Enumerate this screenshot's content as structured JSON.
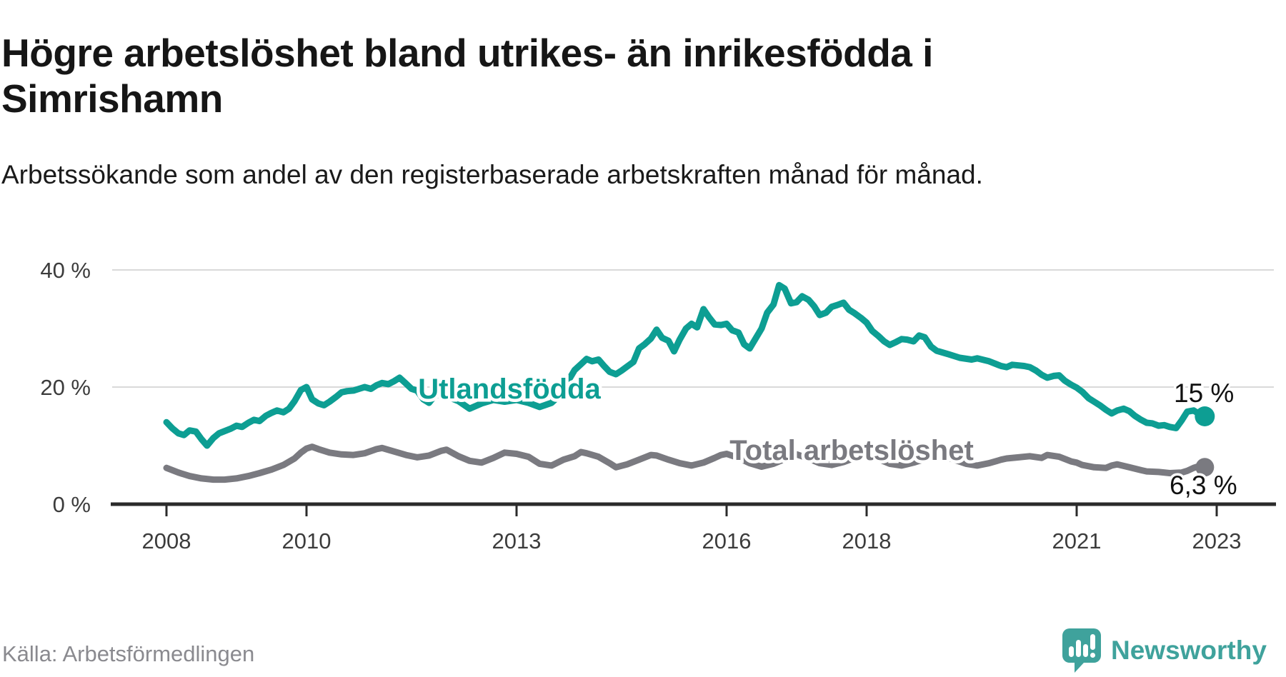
{
  "title": "Högre arbetslöshet bland utrikes- än inrikesfödda i Simrishamn",
  "subtitle": "Arbetssökande som andel av den registerbaserade arbetskraften månad för månad.",
  "source": "Källa: Arbetsförmedlingen",
  "branding": {
    "name": "Newsworthy"
  },
  "chart_data": {
    "type": "line",
    "title": "Högre arbetslöshet bland utrikes- än inrikesfödda i Simrishamn",
    "xlabel": "",
    "ylabel": "",
    "grid": "horizontal",
    "x_axis": {
      "min": 2008,
      "max": 2023.8,
      "ticks": [
        {
          "value": 2008,
          "label": "2008"
        },
        {
          "value": 2010,
          "label": "2010"
        },
        {
          "value": 2013,
          "label": "2013"
        },
        {
          "value": 2016,
          "label": "2016"
        },
        {
          "value": 2018,
          "label": "2018"
        },
        {
          "value": 2021,
          "label": "2021"
        },
        {
          "value": 2023,
          "label": "2023"
        }
      ]
    },
    "y_axis": {
      "min": 0,
      "max": 40,
      "unit": "%",
      "ticks": [
        {
          "value": 0,
          "label": "0 %"
        },
        {
          "value": 20,
          "label": "20 %"
        },
        {
          "value": 40,
          "label": "40 %"
        }
      ]
    },
    "series": [
      {
        "name": "Utlandsfödda",
        "color": "#0d9e93",
        "end_label": "15 %",
        "end_value": 15,
        "points": [
          [
            2008.0,
            14.0
          ],
          [
            2008.08,
            13.0
          ],
          [
            2008.17,
            12.1
          ],
          [
            2008.25,
            11.8
          ],
          [
            2008.33,
            12.6
          ],
          [
            2008.42,
            12.4
          ],
          [
            2008.5,
            11.1
          ],
          [
            2008.58,
            10.0
          ],
          [
            2008.67,
            11.3
          ],
          [
            2008.75,
            12.1
          ],
          [
            2008.92,
            12.9
          ],
          [
            2009.0,
            13.4
          ],
          [
            2009.08,
            13.2
          ],
          [
            2009.17,
            13.9
          ],
          [
            2009.25,
            14.4
          ],
          [
            2009.33,
            14.2
          ],
          [
            2009.42,
            15.1
          ],
          [
            2009.5,
            15.6
          ],
          [
            2009.58,
            16.0
          ],
          [
            2009.67,
            15.7
          ],
          [
            2009.75,
            16.3
          ],
          [
            2009.83,
            17.6
          ],
          [
            2009.92,
            19.5
          ],
          [
            2010.0,
            20.0
          ],
          [
            2010.08,
            17.9
          ],
          [
            2010.17,
            17.2
          ],
          [
            2010.25,
            16.9
          ],
          [
            2010.33,
            17.5
          ],
          [
            2010.42,
            18.3
          ],
          [
            2010.5,
            19.1
          ],
          [
            2010.58,
            19.3
          ],
          [
            2010.67,
            19.4
          ],
          [
            2010.75,
            19.7
          ],
          [
            2010.83,
            20.0
          ],
          [
            2010.92,
            19.7
          ],
          [
            2011.0,
            20.3
          ],
          [
            2011.08,
            20.7
          ],
          [
            2011.17,
            20.5
          ],
          [
            2011.25,
            21.0
          ],
          [
            2011.33,
            21.6
          ],
          [
            2011.42,
            20.6
          ],
          [
            2011.5,
            19.7
          ],
          [
            2011.58,
            19.4
          ],
          [
            2011.67,
            17.9
          ],
          [
            2011.75,
            17.3
          ],
          [
            2011.83,
            18.5
          ],
          [
            2011.92,
            18.8
          ],
          [
            2012.0,
            18.4
          ],
          [
            2012.17,
            17.6
          ],
          [
            2012.33,
            16.3
          ],
          [
            2012.5,
            17.2
          ],
          [
            2012.67,
            17.8
          ],
          [
            2012.83,
            17.5
          ],
          [
            2013.0,
            17.8
          ],
          [
            2013.17,
            17.3
          ],
          [
            2013.33,
            16.6
          ],
          [
            2013.5,
            17.3
          ],
          [
            2013.67,
            19.2
          ],
          [
            2013.75,
            21.3
          ],
          [
            2013.83,
            22.9
          ],
          [
            2013.92,
            23.9
          ],
          [
            2014.0,
            24.8
          ],
          [
            2014.08,
            24.4
          ],
          [
            2014.17,
            24.7
          ],
          [
            2014.25,
            23.6
          ],
          [
            2014.33,
            22.6
          ],
          [
            2014.42,
            22.2
          ],
          [
            2014.5,
            22.8
          ],
          [
            2014.58,
            23.5
          ],
          [
            2014.67,
            24.3
          ],
          [
            2014.75,
            26.6
          ],
          [
            2014.83,
            27.3
          ],
          [
            2014.92,
            28.3
          ],
          [
            2015.0,
            29.8
          ],
          [
            2015.08,
            28.4
          ],
          [
            2015.17,
            27.9
          ],
          [
            2015.25,
            26.1
          ],
          [
            2015.33,
            28.1
          ],
          [
            2015.42,
            30.0
          ],
          [
            2015.5,
            30.8
          ],
          [
            2015.58,
            30.2
          ],
          [
            2015.67,
            33.3
          ],
          [
            2015.75,
            31.9
          ],
          [
            2015.83,
            30.7
          ],
          [
            2015.92,
            30.6
          ],
          [
            2016.0,
            30.8
          ],
          [
            2016.08,
            29.7
          ],
          [
            2016.17,
            29.3
          ],
          [
            2016.25,
            27.3
          ],
          [
            2016.33,
            26.6
          ],
          [
            2016.42,
            28.4
          ],
          [
            2016.5,
            30.0
          ],
          [
            2016.58,
            32.7
          ],
          [
            2016.67,
            34.1
          ],
          [
            2016.75,
            37.4
          ],
          [
            2016.83,
            36.8
          ],
          [
            2016.92,
            34.3
          ],
          [
            2017.0,
            34.5
          ],
          [
            2017.08,
            35.5
          ],
          [
            2017.17,
            34.9
          ],
          [
            2017.25,
            33.8
          ],
          [
            2017.33,
            32.3
          ],
          [
            2017.42,
            32.7
          ],
          [
            2017.5,
            33.7
          ],
          [
            2017.58,
            34.0
          ],
          [
            2017.67,
            34.4
          ],
          [
            2017.75,
            33.2
          ],
          [
            2017.83,
            32.6
          ],
          [
            2017.92,
            31.8
          ],
          [
            2018.0,
            31.0
          ],
          [
            2018.08,
            29.6
          ],
          [
            2018.17,
            28.7
          ],
          [
            2018.25,
            27.8
          ],
          [
            2018.33,
            27.2
          ],
          [
            2018.42,
            27.7
          ],
          [
            2018.5,
            28.2
          ],
          [
            2018.58,
            28.1
          ],
          [
            2018.67,
            27.8
          ],
          [
            2018.75,
            28.8
          ],
          [
            2018.83,
            28.5
          ],
          [
            2018.92,
            26.9
          ],
          [
            2019.0,
            26.2
          ],
          [
            2019.17,
            25.6
          ],
          [
            2019.33,
            25.0
          ],
          [
            2019.5,
            24.7
          ],
          [
            2019.58,
            24.9
          ],
          [
            2019.75,
            24.4
          ],
          [
            2019.92,
            23.6
          ],
          [
            2020.0,
            23.4
          ],
          [
            2020.08,
            23.8
          ],
          [
            2020.17,
            23.7
          ],
          [
            2020.25,
            23.6
          ],
          [
            2020.33,
            23.4
          ],
          [
            2020.42,
            22.8
          ],
          [
            2020.5,
            22.1
          ],
          [
            2020.58,
            21.6
          ],
          [
            2020.67,
            21.9
          ],
          [
            2020.75,
            22.0
          ],
          [
            2020.83,
            21.1
          ],
          [
            2020.92,
            20.4
          ],
          [
            2021.0,
            19.9
          ],
          [
            2021.08,
            19.2
          ],
          [
            2021.17,
            18.1
          ],
          [
            2021.25,
            17.5
          ],
          [
            2021.33,
            16.9
          ],
          [
            2021.42,
            16.1
          ],
          [
            2021.5,
            15.5
          ],
          [
            2021.58,
            16.0
          ],
          [
            2021.67,
            16.3
          ],
          [
            2021.75,
            15.9
          ],
          [
            2021.83,
            15.1
          ],
          [
            2021.92,
            14.4
          ],
          [
            2022.0,
            13.9
          ],
          [
            2022.08,
            13.8
          ],
          [
            2022.17,
            13.4
          ],
          [
            2022.25,
            13.5
          ],
          [
            2022.33,
            13.2
          ],
          [
            2022.42,
            13.0
          ],
          [
            2022.5,
            14.3
          ],
          [
            2022.58,
            15.8
          ],
          [
            2022.67,
            16.0
          ],
          [
            2022.75,
            15.4
          ],
          [
            2022.83,
            15.0
          ]
        ]
      },
      {
        "name": "Total arbetslöshet",
        "color": "#7a7a80",
        "end_label": "6,3 %",
        "end_value": 6.3,
        "points": [
          [
            2008.0,
            6.2
          ],
          [
            2008.17,
            5.4
          ],
          [
            2008.33,
            4.8
          ],
          [
            2008.5,
            4.4
          ],
          [
            2008.67,
            4.2
          ],
          [
            2008.83,
            4.2
          ],
          [
            2009.0,
            4.4
          ],
          [
            2009.17,
            4.8
          ],
          [
            2009.33,
            5.3
          ],
          [
            2009.5,
            5.9
          ],
          [
            2009.67,
            6.7
          ],
          [
            2009.83,
            7.8
          ],
          [
            2009.92,
            8.8
          ],
          [
            2010.0,
            9.5
          ],
          [
            2010.08,
            9.8
          ],
          [
            2010.17,
            9.4
          ],
          [
            2010.33,
            8.8
          ],
          [
            2010.5,
            8.5
          ],
          [
            2010.67,
            8.4
          ],
          [
            2010.83,
            8.7
          ],
          [
            2011.0,
            9.4
          ],
          [
            2011.08,
            9.6
          ],
          [
            2011.25,
            9.0
          ],
          [
            2011.42,
            8.4
          ],
          [
            2011.58,
            8.0
          ],
          [
            2011.75,
            8.3
          ],
          [
            2011.92,
            9.1
          ],
          [
            2012.0,
            9.3
          ],
          [
            2012.17,
            8.2
          ],
          [
            2012.33,
            7.4
          ],
          [
            2012.5,
            7.1
          ],
          [
            2012.67,
            7.9
          ],
          [
            2012.83,
            8.8
          ],
          [
            2013.0,
            8.6
          ],
          [
            2013.17,
            8.1
          ],
          [
            2013.33,
            6.9
          ],
          [
            2013.5,
            6.6
          ],
          [
            2013.67,
            7.6
          ],
          [
            2013.83,
            8.2
          ],
          [
            2013.92,
            8.9
          ],
          [
            2014.0,
            8.7
          ],
          [
            2014.17,
            8.1
          ],
          [
            2014.33,
            7.0
          ],
          [
            2014.42,
            6.3
          ],
          [
            2014.58,
            6.8
          ],
          [
            2014.75,
            7.6
          ],
          [
            2014.92,
            8.4
          ],
          [
            2015.0,
            8.3
          ],
          [
            2015.17,
            7.6
          ],
          [
            2015.33,
            7.0
          ],
          [
            2015.5,
            6.6
          ],
          [
            2015.67,
            7.1
          ],
          [
            2015.83,
            7.9
          ],
          [
            2015.92,
            8.4
          ],
          [
            2016.0,
            8.6
          ],
          [
            2016.17,
            7.9
          ],
          [
            2016.33,
            7.0
          ],
          [
            2016.5,
            6.4
          ],
          [
            2016.67,
            6.9
          ],
          [
            2016.83,
            7.7
          ],
          [
            2016.92,
            8.3
          ],
          [
            2017.0,
            8.5
          ],
          [
            2017.17,
            7.8
          ],
          [
            2017.33,
            7.0
          ],
          [
            2017.5,
            6.7
          ],
          [
            2017.67,
            7.2
          ],
          [
            2017.83,
            7.9
          ],
          [
            2017.92,
            8.3
          ],
          [
            2018.0,
            8.4
          ],
          [
            2018.17,
            7.7
          ],
          [
            2018.33,
            6.9
          ],
          [
            2018.5,
            6.6
          ],
          [
            2018.67,
            7.1
          ],
          [
            2018.83,
            7.7
          ],
          [
            2019.0,
            8.0
          ],
          [
            2019.08,
            8.2
          ],
          [
            2019.25,
            7.6
          ],
          [
            2019.42,
            6.9
          ],
          [
            2019.58,
            6.6
          ],
          [
            2019.75,
            7.0
          ],
          [
            2019.92,
            7.6
          ],
          [
            2020.0,
            7.8
          ],
          [
            2020.17,
            8.0
          ],
          [
            2020.33,
            8.2
          ],
          [
            2020.5,
            7.9
          ],
          [
            2020.58,
            8.4
          ],
          [
            2020.75,
            8.1
          ],
          [
            2020.92,
            7.3
          ],
          [
            2021.0,
            7.1
          ],
          [
            2021.08,
            6.7
          ],
          [
            2021.25,
            6.3
          ],
          [
            2021.42,
            6.2
          ],
          [
            2021.5,
            6.6
          ],
          [
            2021.58,
            6.8
          ],
          [
            2021.75,
            6.3
          ],
          [
            2021.92,
            5.8
          ],
          [
            2022.0,
            5.6
          ],
          [
            2022.17,
            5.5
          ],
          [
            2022.33,
            5.3
          ],
          [
            2022.5,
            5.4
          ],
          [
            2022.58,
            5.7
          ],
          [
            2022.67,
            6.2
          ],
          [
            2022.75,
            6.5
          ],
          [
            2022.83,
            6.3
          ]
        ]
      }
    ]
  }
}
